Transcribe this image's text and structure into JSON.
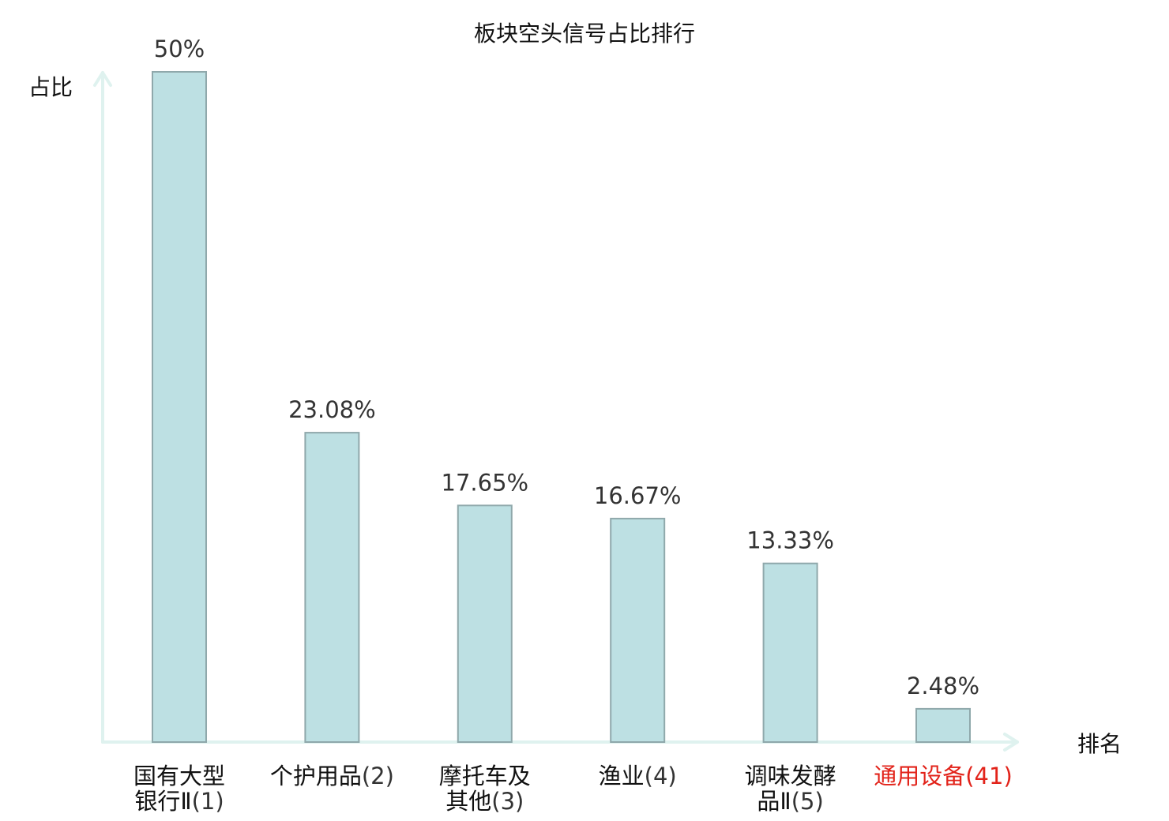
{
  "chart_data": {
    "type": "bar",
    "title": "板块空头信号占比排行",
    "ylabel": "占比",
    "xlabel": "排名",
    "ylim": [
      0,
      50
    ],
    "grid": false,
    "legend": "none",
    "categories": [
      {
        "lines": [
          "国有大型",
          "银行Ⅱ"
        ],
        "rank": "(1)",
        "highlight": false
      },
      {
        "lines": [
          "个护用品"
        ],
        "rank": "(2)",
        "highlight": false
      },
      {
        "lines": [
          "摩托车及",
          "其他"
        ],
        "rank": "(3)",
        "highlight": false
      },
      {
        "lines": [
          "渔业"
        ],
        "rank": "(4)",
        "highlight": false
      },
      {
        "lines": [
          "调味发酵",
          "品Ⅱ"
        ],
        "rank": "(5)",
        "highlight": false
      },
      {
        "lines": [
          "通用设备"
        ],
        "rank": "(41)",
        "highlight": true
      }
    ],
    "values": [
      50,
      23.08,
      17.65,
      16.67,
      13.33,
      2.48
    ],
    "value_labels": [
      "50%",
      "23.08%",
      "17.65%",
      "16.67%",
      "13.33%",
      "2.48%"
    ],
    "colors": {
      "bar_fill": "#bde0e3",
      "bar_stroke": "#8fa8ab",
      "axis": "#dff2ef",
      "highlight_text": "#e2231a"
    }
  }
}
